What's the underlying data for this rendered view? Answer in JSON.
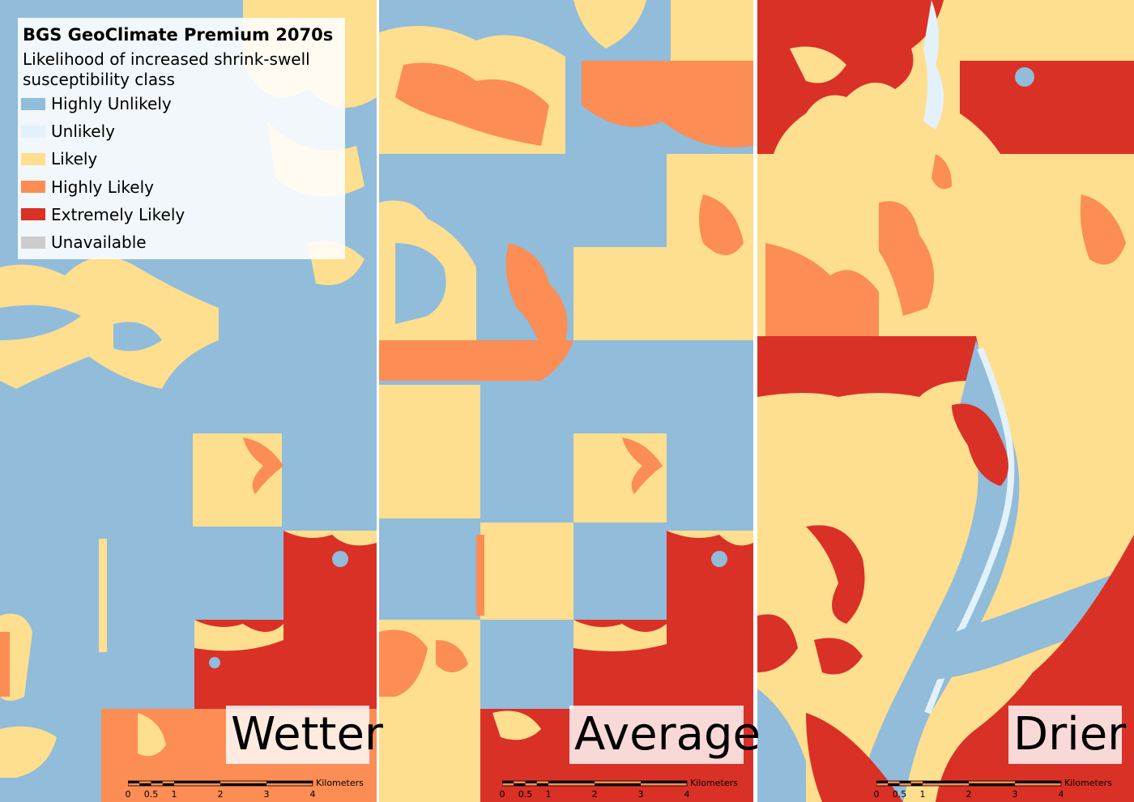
{
  "legend": {
    "title": "BGS GeoClimate Premium 2070s",
    "subtitle": "Likelihood of increased shrink-swell susceptibility class",
    "items": [
      {
        "label": "Highly Unlikely",
        "color": "#91bcda"
      },
      {
        "label": "Unlikely",
        "color": "#e3f2fa"
      },
      {
        "label": "Likely",
        "color": "#fede8f"
      },
      {
        "label": "Highly Likely",
        "color": "#fb8d55"
      },
      {
        "label": "Extremely Likely",
        "color": "#d93126"
      },
      {
        "label": "Unavailable",
        "color": "#cccccc"
      }
    ]
  },
  "panels": [
    {
      "scenario": "Wetter"
    },
    {
      "scenario": "Average"
    },
    {
      "scenario": "Drier"
    }
  ],
  "scalebar": {
    "unit": "Kilometers",
    "ticks": [
      "0",
      "0.5",
      "1",
      "2",
      "3",
      "4"
    ]
  }
}
